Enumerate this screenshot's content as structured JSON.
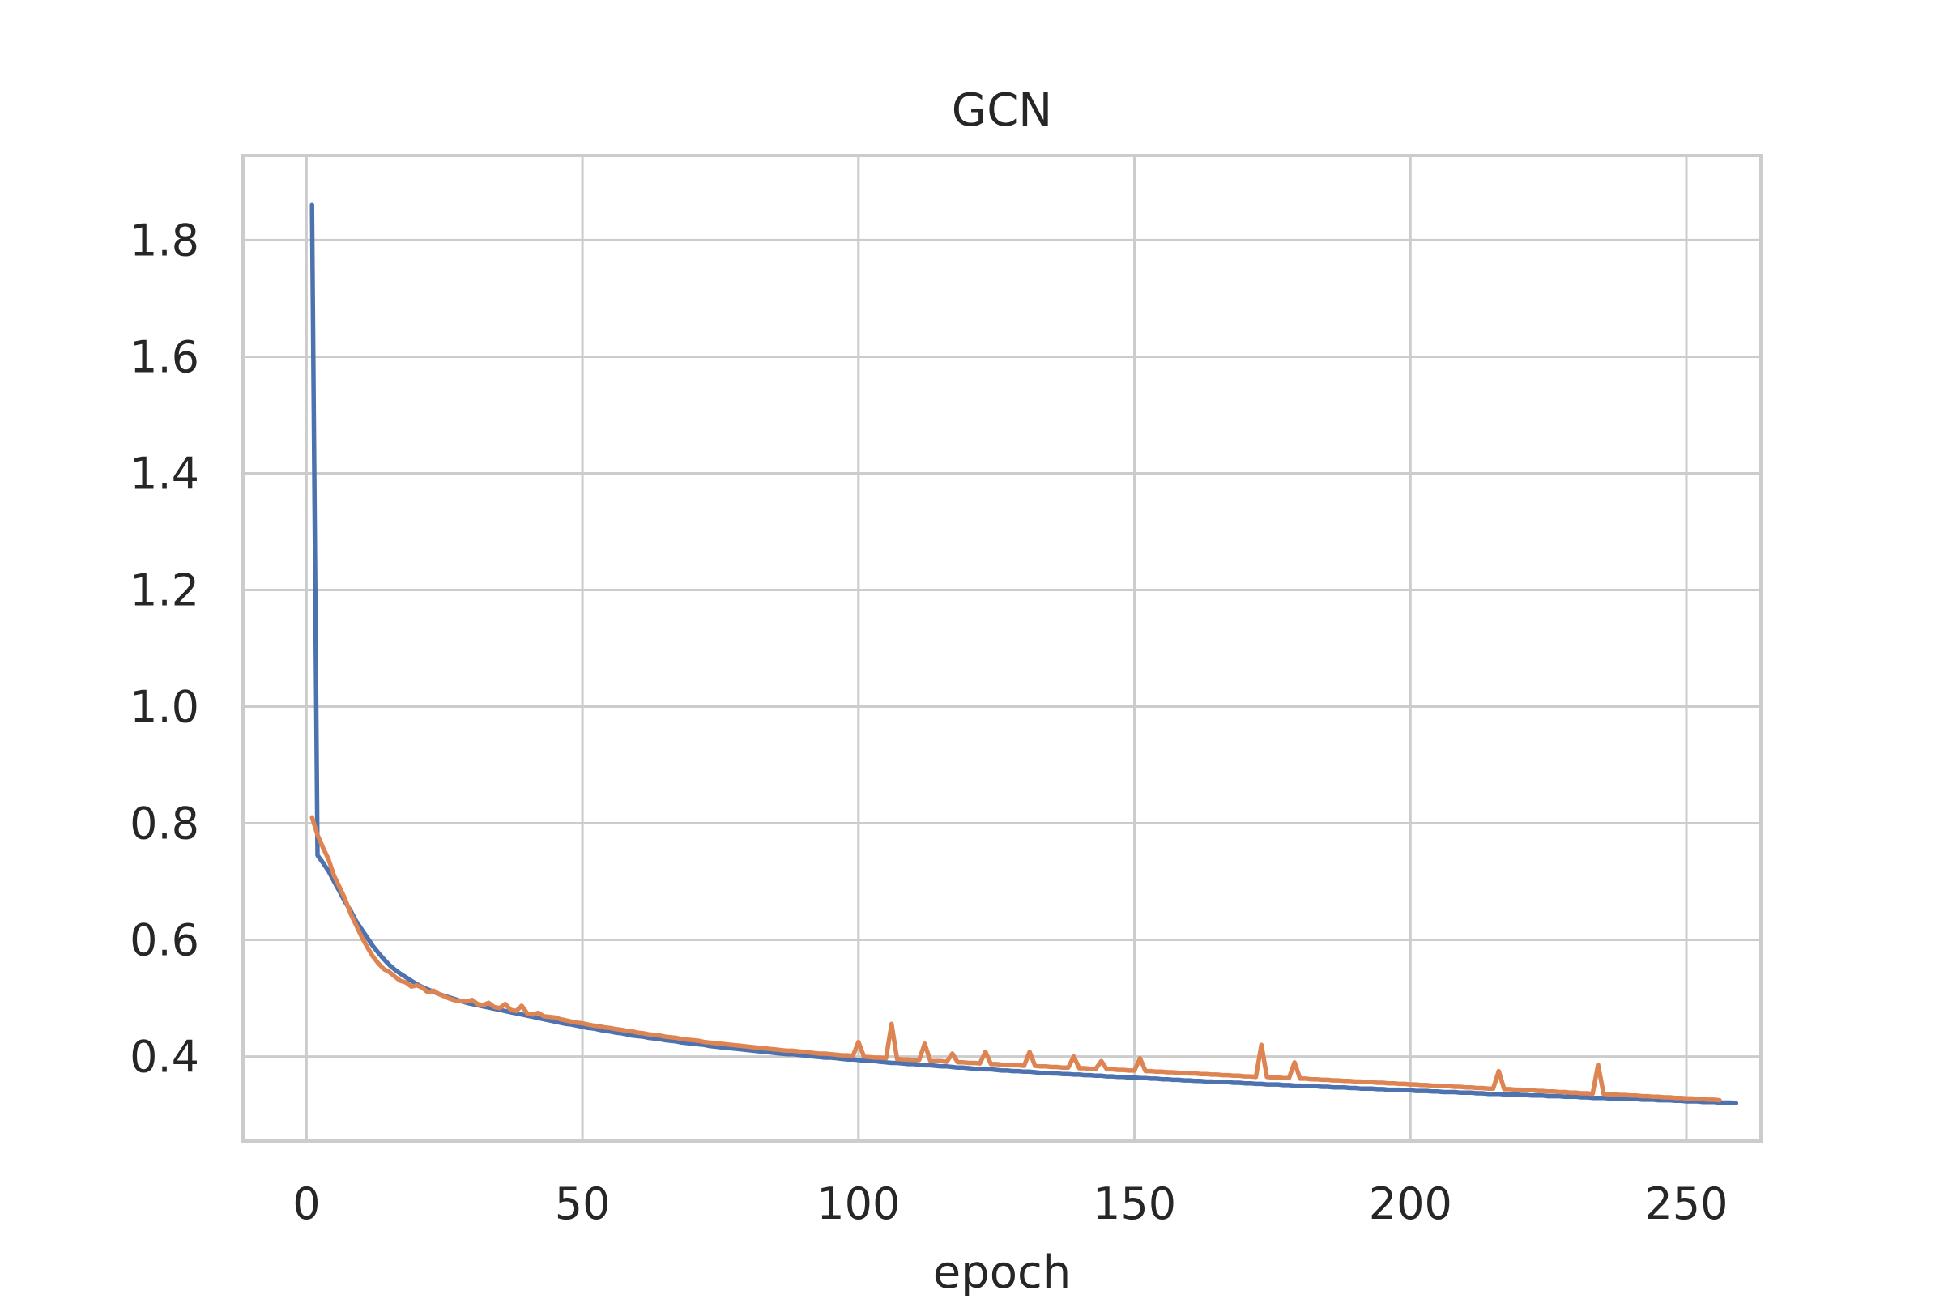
{
  "chart_data": {
    "type": "line",
    "title": "GCN",
    "xlabel": "epoch",
    "ylabel": "",
    "xlim": [
      -11.5,
      263.5
    ],
    "ylim": [
      0.255,
      1.945
    ],
    "x_ticks": [
      0,
      50,
      100,
      150,
      200,
      250
    ],
    "y_ticks": [
      0.4,
      0.6,
      0.8,
      1.0,
      1.2,
      1.4,
      1.6,
      1.8
    ],
    "x_tick_labels": [
      "0",
      "50",
      "100",
      "150",
      "200",
      "250"
    ],
    "y_tick_labels": [
      "0.4",
      "0.6",
      "0.8",
      "1.0",
      "1.2",
      "1.4",
      "1.6",
      "1.8"
    ],
    "grid": true,
    "legend": "none",
    "series": [
      {
        "color": "#4c72b0",
        "x_start": 1,
        "x_step": 1,
        "values": [
          1.86,
          0.745,
          0.732,
          0.718,
          0.7,
          0.683,
          0.665,
          0.65,
          0.632,
          0.618,
          0.604,
          0.59,
          0.578,
          0.567,
          0.557,
          0.549,
          0.542,
          0.536,
          0.53,
          0.524,
          0.519,
          0.515,
          0.511,
          0.507,
          0.504,
          0.501,
          0.498,
          0.495,
          0.492,
          0.49,
          0.488,
          0.486,
          0.484,
          0.482,
          0.48,
          0.478,
          0.476,
          0.474,
          0.472,
          0.47,
          0.468,
          0.466,
          0.464,
          0.462,
          0.46,
          0.458,
          0.456,
          0.455,
          0.453,
          0.451,
          0.449,
          0.448,
          0.446,
          0.444,
          0.443,
          0.441,
          0.44,
          0.438,
          0.436,
          0.435,
          0.434,
          0.432,
          0.431,
          0.43,
          0.428,
          0.427,
          0.426,
          0.424,
          0.423,
          0.422,
          0.421,
          0.42,
          0.418,
          0.417,
          0.416,
          0.415,
          0.414,
          0.413,
          0.412,
          0.411,
          0.41,
          0.409,
          0.408,
          0.407,
          0.406,
          0.405,
          0.404,
          0.404,
          0.403,
          0.402,
          0.401,
          0.4,
          0.399,
          0.398,
          0.398,
          0.397,
          0.396,
          0.395,
          0.395,
          0.394,
          0.393,
          0.392,
          0.392,
          0.391,
          0.39,
          0.389,
          0.389,
          0.388,
          0.387,
          0.387,
          0.386,
          0.385,
          0.385,
          0.384,
          0.383,
          0.383,
          0.382,
          0.381,
          0.381,
          0.38,
          0.379,
          0.379,
          0.378,
          0.378,
          0.377,
          0.376,
          0.376,
          0.375,
          0.375,
          0.374,
          0.374,
          0.373,
          0.372,
          0.372,
          0.371,
          0.371,
          0.37,
          0.37,
          0.369,
          0.369,
          0.368,
          0.368,
          0.367,
          0.367,
          0.366,
          0.366,
          0.365,
          0.365,
          0.364,
          0.364,
          0.363,
          0.363,
          0.362,
          0.362,
          0.361,
          0.361,
          0.36,
          0.36,
          0.359,
          0.359,
          0.358,
          0.358,
          0.357,
          0.357,
          0.356,
          0.356,
          0.356,
          0.355,
          0.355,
          0.354,
          0.354,
          0.353,
          0.353,
          0.352,
          0.352,
          0.352,
          0.351,
          0.351,
          0.35,
          0.35,
          0.349,
          0.349,
          0.349,
          0.348,
          0.348,
          0.347,
          0.347,
          0.347,
          0.346,
          0.346,
          0.345,
          0.345,
          0.345,
          0.344,
          0.344,
          0.343,
          0.343,
          0.343,
          0.342,
          0.342,
          0.341,
          0.341,
          0.341,
          0.34,
          0.34,
          0.339,
          0.339,
          0.339,
          0.338,
          0.338,
          0.338,
          0.337,
          0.337,
          0.336,
          0.336,
          0.336,
          0.335,
          0.335,
          0.335,
          0.334,
          0.334,
          0.333,
          0.333,
          0.333,
          0.332,
          0.332,
          0.332,
          0.331,
          0.331,
          0.331,
          0.33,
          0.33,
          0.329,
          0.329,
          0.329,
          0.328,
          0.328,
          0.328,
          0.327,
          0.327,
          0.327,
          0.326,
          0.326,
          0.326,
          0.325,
          0.325,
          0.325,
          0.324,
          0.324,
          0.323,
          0.323,
          0.323,
          0.322,
          0.322,
          0.322,
          0.321,
          0.321,
          0.321,
          0.32
        ]
      },
      {
        "color": "#dd8452",
        "x_start": 1,
        "x_step": 1,
        "values": [
          0.81,
          0.78,
          0.758,
          0.738,
          0.71,
          0.69,
          0.67,
          0.645,
          0.625,
          0.605,
          0.588,
          0.572,
          0.56,
          0.55,
          0.545,
          0.537,
          0.53,
          0.527,
          0.52,
          0.522,
          0.518,
          0.51,
          0.513,
          0.507,
          0.503,
          0.499,
          0.496,
          0.495,
          0.494,
          0.497,
          0.49,
          0.488,
          0.492,
          0.485,
          0.483,
          0.49,
          0.48,
          0.478,
          0.487,
          0.474,
          0.472,
          0.475,
          0.469,
          0.468,
          0.467,
          0.464,
          0.462,
          0.46,
          0.458,
          0.457,
          0.455,
          0.453,
          0.452,
          0.45,
          0.449,
          0.447,
          0.446,
          0.444,
          0.443,
          0.441,
          0.44,
          0.438,
          0.437,
          0.436,
          0.434,
          0.433,
          0.432,
          0.43,
          0.429,
          0.428,
          0.427,
          0.425,
          0.424,
          0.423,
          0.422,
          0.421,
          0.42,
          0.419,
          0.418,
          0.417,
          0.416,
          0.415,
          0.414,
          0.413,
          0.412,
          0.411,
          0.41,
          0.41,
          0.409,
          0.408,
          0.407,
          0.406,
          0.405,
          0.405,
          0.404,
          0.403,
          0.402,
          0.402,
          0.401,
          0.425,
          0.4,
          0.399,
          0.398,
          0.398,
          0.397,
          0.456,
          0.396,
          0.395,
          0.395,
          0.394,
          0.394,
          0.422,
          0.393,
          0.392,
          0.392,
          0.391,
          0.405,
          0.39,
          0.39,
          0.389,
          0.389,
          0.388,
          0.408,
          0.387,
          0.387,
          0.386,
          0.386,
          0.385,
          0.385,
          0.384,
          0.408,
          0.384,
          0.383,
          0.383,
          0.382,
          0.382,
          0.381,
          0.381,
          0.4,
          0.38,
          0.38,
          0.379,
          0.379,
          0.392,
          0.378,
          0.378,
          0.377,
          0.377,
          0.376,
          0.376,
          0.397,
          0.375,
          0.375,
          0.374,
          0.374,
          0.373,
          0.373,
          0.372,
          0.372,
          0.371,
          0.371,
          0.37,
          0.37,
          0.369,
          0.369,
          0.368,
          0.368,
          0.367,
          0.367,
          0.366,
          0.366,
          0.365,
          0.42,
          0.365,
          0.364,
          0.364,
          0.363,
          0.363,
          0.39,
          0.362,
          0.362,
          0.361,
          0.361,
          0.36,
          0.36,
          0.359,
          0.359,
          0.358,
          0.358,
          0.357,
          0.357,
          0.356,
          0.356,
          0.355,
          0.355,
          0.354,
          0.354,
          0.353,
          0.353,
          0.352,
          0.352,
          0.351,
          0.351,
          0.35,
          0.35,
          0.349,
          0.349,
          0.348,
          0.348,
          0.347,
          0.347,
          0.346,
          0.346,
          0.345,
          0.345,
          0.375,
          0.344,
          0.344,
          0.343,
          0.343,
          0.342,
          0.342,
          0.341,
          0.341,
          0.34,
          0.34,
          0.339,
          0.339,
          0.338,
          0.338,
          0.337,
          0.337,
          0.336,
          0.386,
          0.336,
          0.335,
          0.335,
          0.334,
          0.334,
          0.333,
          0.333,
          0.332,
          0.332,
          0.331,
          0.331,
          0.33,
          0.33,
          0.329,
          0.329,
          0.328,
          0.328,
          0.327,
          0.327,
          0.326,
          0.326,
          0.325
        ]
      }
    ]
  }
}
